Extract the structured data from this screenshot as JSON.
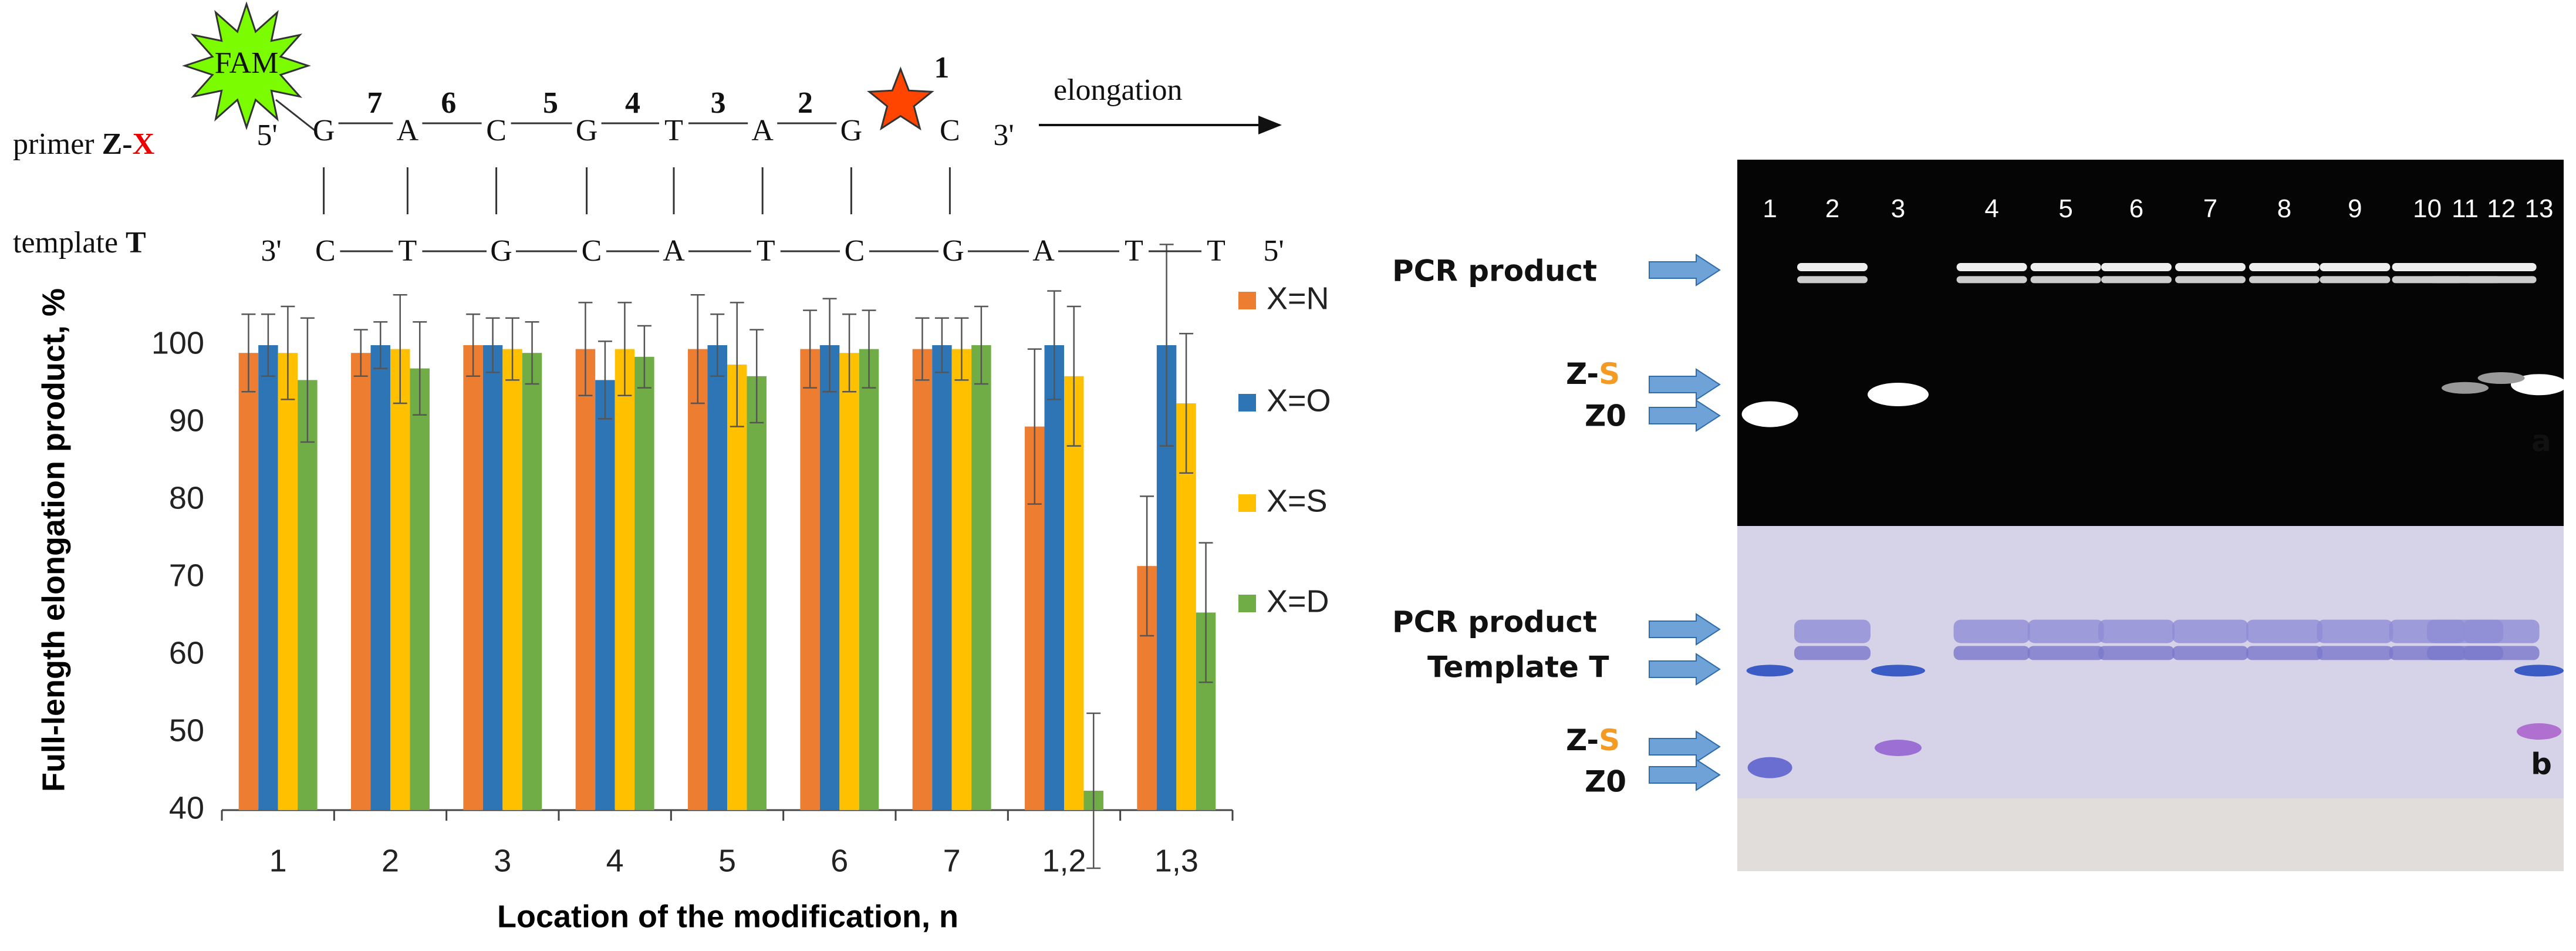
{
  "chart_data": {
    "type": "bar",
    "y_axis_label": "Full-length elongation product, %",
    "x_axis_label": "Location of the modification,  n",
    "categories": [
      "1",
      "2",
      "3",
      "4",
      "5",
      "6",
      "7",
      "1,2",
      "1,3"
    ],
    "series": [
      {
        "name": "X=N",
        "color": "#ed7d31",
        "values": [
          99,
          99,
          100,
          99.5,
          99.5,
          99.5,
          99.5,
          89.5,
          71.5
        ],
        "errors": [
          5,
          3,
          4,
          6,
          7,
          5,
          4,
          10,
          9
        ]
      },
      {
        "name": "X=O",
        "color": "#2e75b6",
        "values": [
          100,
          100,
          100,
          95.5,
          100,
          100,
          100,
          100,
          100
        ],
        "errors": [
          4,
          3,
          3.5,
          5,
          4,
          6,
          3.5,
          7,
          13
        ]
      },
      {
        "name": "X=S",
        "color": "#ffc000",
        "values": [
          99,
          99.5,
          99.5,
          99.5,
          97.5,
          99,
          99.5,
          96,
          92.5
        ],
        "errors": [
          6,
          7,
          4,
          6,
          8,
          5,
          4,
          9,
          9
        ]
      },
      {
        "name": "X=D",
        "color": "#70ad47",
        "values": [
          95.5,
          97,
          99,
          98.5,
          96,
          99.5,
          100,
          42.5,
          65.5
        ],
        "errors": [
          8,
          6,
          4,
          4,
          6,
          5,
          5,
          10,
          9
        ]
      }
    ],
    "ylim": [
      40,
      110
    ],
    "yticks": [
      40,
      50,
      60,
      70,
      80,
      90,
      100
    ],
    "legend": "right"
  },
  "diagram": {
    "fam": "FAM",
    "primer_label": [
      "primer ",
      "Z-",
      "X"
    ],
    "primer_5": "5'",
    "primer_3": "3'",
    "primer_letters": [
      "G",
      "A",
      "C",
      "G",
      "T",
      "A",
      "G",
      "C"
    ],
    "positions": [
      "7",
      "6",
      "5",
      "4",
      "3",
      "2",
      "1"
    ],
    "elongation": "elongation",
    "template_label": [
      "template ",
      "T"
    ],
    "template_3": "3'",
    "template_5": "5'",
    "template_letters": [
      "C",
      "T",
      "G",
      "C",
      "A",
      "T",
      "C",
      "G",
      "A",
      "T",
      "T"
    ]
  },
  "gel": {
    "lanes": [
      "1",
      "2",
      "3",
      "4",
      "5",
      "6",
      "7",
      "8",
      "9",
      "10",
      "11",
      "12",
      "13"
    ],
    "top_labels": {
      "pcr": "PCR product",
      "zs": [
        "Z-",
        "S"
      ],
      "z0": "Z0",
      "panel": "a"
    },
    "bottom_labels": {
      "pcr": "PCR product",
      "template": "Template  T",
      "zs": [
        "Z-",
        "S"
      ],
      "z0": "Z0",
      "panel": "b"
    }
  }
}
